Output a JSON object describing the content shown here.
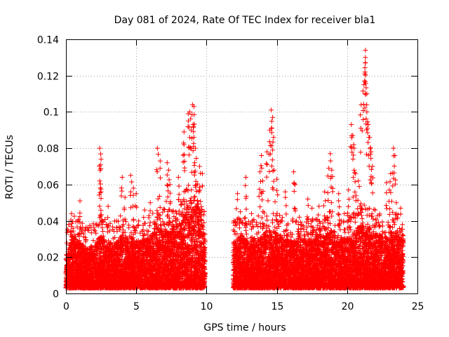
{
  "chart_data": {
    "type": "scatter",
    "title": "Day 081 of 2024, Rate Of TEC Index for receiver bla1",
    "xlabel": "GPS time / hours",
    "ylabel": "ROTI / TECUs",
    "xlim": [
      0,
      25
    ],
    "ylim": [
      0,
      0.14
    ],
    "x_ticks": [
      "0",
      "5",
      "10",
      "15",
      "20",
      "25"
    ],
    "y_ticks": [
      "0",
      "0.02",
      "0.04",
      "0.06",
      "0.08",
      "0.1",
      "0.12",
      "0.14"
    ],
    "grid": true,
    "marker": "+",
    "color": "#ff0000",
    "data_gap_hours": [
      9.9,
      11.9
    ],
    "envelope": {
      "hours": [
        0,
        0.5,
        1,
        1.5,
        2,
        2.5,
        3,
        3.5,
        4,
        4.5,
        5,
        5.5,
        6,
        6.5,
        7,
        7.5,
        8,
        8.5,
        9,
        9.5,
        9.9,
        12,
        12.5,
        13,
        13.5,
        14,
        14.5,
        15,
        15.5,
        16,
        16.5,
        17,
        17.5,
        18,
        18.5,
        19,
        19.5,
        20,
        20.5,
        21,
        21.5,
        22,
        22.5,
        23,
        23.5,
        24
      ],
      "typical": [
        0.022,
        0.032,
        0.028,
        0.025,
        0.027,
        0.032,
        0.027,
        0.028,
        0.032,
        0.032,
        0.028,
        0.03,
        0.032,
        0.036,
        0.035,
        0.034,
        0.038,
        0.045,
        0.055,
        0.05,
        0.03,
        0.03,
        0.032,
        0.028,
        0.03,
        0.032,
        0.036,
        0.033,
        0.03,
        0.03,
        0.029,
        0.03,
        0.029,
        0.031,
        0.033,
        0.035,
        0.031,
        0.031,
        0.034,
        0.038,
        0.036,
        0.034,
        0.031,
        0.034,
        0.033,
        0.03
      ]
    },
    "peaks": [
      {
        "x": 0.2,
        "y": 0.038
      },
      {
        "x": 0.4,
        "y": 0.044
      },
      {
        "x": 1.0,
        "y": 0.051
      },
      {
        "x": 2.4,
        "y": 0.08
      },
      {
        "x": 2.5,
        "y": 0.074
      },
      {
        "x": 2.4,
        "y": 0.062
      },
      {
        "x": 2.5,
        "y": 0.056
      },
      {
        "x": 3.0,
        "y": 0.048
      },
      {
        "x": 3.6,
        "y": 0.04
      },
      {
        "x": 4.0,
        "y": 0.064
      },
      {
        "x": 4.2,
        "y": 0.053
      },
      {
        "x": 4.6,
        "y": 0.065
      },
      {
        "x": 4.8,
        "y": 0.058
      },
      {
        "x": 5.0,
        "y": 0.055
      },
      {
        "x": 5.6,
        "y": 0.046
      },
      {
        "x": 6.0,
        "y": 0.05
      },
      {
        "x": 6.5,
        "y": 0.08
      },
      {
        "x": 6.7,
        "y": 0.073
      },
      {
        "x": 7.2,
        "y": 0.072
      },
      {
        "x": 7.3,
        "y": 0.068
      },
      {
        "x": 7.4,
        "y": 0.06
      },
      {
        "x": 8.0,
        "y": 0.064
      },
      {
        "x": 8.4,
        "y": 0.089
      },
      {
        "x": 8.4,
        "y": 0.082
      },
      {
        "x": 8.7,
        "y": 0.099
      },
      {
        "x": 8.8,
        "y": 0.1
      },
      {
        "x": 8.9,
        "y": 0.09
      },
      {
        "x": 9.0,
        "y": 0.104
      },
      {
        "x": 9.1,
        "y": 0.103
      },
      {
        "x": 9.1,
        "y": 0.086
      },
      {
        "x": 9.2,
        "y": 0.08
      },
      {
        "x": 9.5,
        "y": 0.07
      },
      {
        "x": 9.7,
        "y": 0.066
      },
      {
        "x": 12.2,
        "y": 0.055
      },
      {
        "x": 12.4,
        "y": 0.045
      },
      {
        "x": 12.8,
        "y": 0.064
      },
      {
        "x": 13.2,
        "y": 0.044
      },
      {
        "x": 13.8,
        "y": 0.067
      },
      {
        "x": 13.9,
        "y": 0.076
      },
      {
        "x": 14.0,
        "y": 0.062
      },
      {
        "x": 14.3,
        "y": 0.078
      },
      {
        "x": 14.5,
        "y": 0.09
      },
      {
        "x": 14.6,
        "y": 0.101
      },
      {
        "x": 14.7,
        "y": 0.097
      },
      {
        "x": 14.7,
        "y": 0.079
      },
      {
        "x": 14.8,
        "y": 0.068
      },
      {
        "x": 15.0,
        "y": 0.063
      },
      {
        "x": 15.2,
        "y": 0.043
      },
      {
        "x": 15.6,
        "y": 0.056
      },
      {
        "x": 16.2,
        "y": 0.067
      },
      {
        "x": 16.3,
        "y": 0.06
      },
      {
        "x": 16.6,
        "y": 0.042
      },
      {
        "x": 17.2,
        "y": 0.052
      },
      {
        "x": 17.5,
        "y": 0.047
      },
      {
        "x": 18.0,
        "y": 0.048
      },
      {
        "x": 18.4,
        "y": 0.056
      },
      {
        "x": 18.7,
        "y": 0.069
      },
      {
        "x": 18.8,
        "y": 0.077
      },
      {
        "x": 18.9,
        "y": 0.068
      },
      {
        "x": 19.4,
        "y": 0.055
      },
      {
        "x": 19.8,
        "y": 0.044
      },
      {
        "x": 20.1,
        "y": 0.057
      },
      {
        "x": 20.3,
        "y": 0.093
      },
      {
        "x": 20.4,
        "y": 0.087
      },
      {
        "x": 20.5,
        "y": 0.08
      },
      {
        "x": 20.6,
        "y": 0.066
      },
      {
        "x": 20.8,
        "y": 0.062
      },
      {
        "x": 21.0,
        "y": 0.104
      },
      {
        "x": 21.2,
        "y": 0.115
      },
      {
        "x": 21.3,
        "y": 0.134
      },
      {
        "x": 21.3,
        "y": 0.13
      },
      {
        "x": 21.3,
        "y": 0.127
      },
      {
        "x": 21.4,
        "y": 0.11
      },
      {
        "x": 21.4,
        "y": 0.1
      },
      {
        "x": 21.5,
        "y": 0.093
      },
      {
        "x": 21.6,
        "y": 0.086
      },
      {
        "x": 21.7,
        "y": 0.078
      },
      {
        "x": 21.8,
        "y": 0.07
      },
      {
        "x": 22.0,
        "y": 0.046
      },
      {
        "x": 22.3,
        "y": 0.043
      },
      {
        "x": 22.8,
        "y": 0.061
      },
      {
        "x": 23.0,
        "y": 0.057
      },
      {
        "x": 23.1,
        "y": 0.066
      },
      {
        "x": 23.3,
        "y": 0.08
      },
      {
        "x": 23.4,
        "y": 0.076
      },
      {
        "x": 23.5,
        "y": 0.05
      },
      {
        "x": 23.8,
        "y": 0.047
      }
    ]
  }
}
